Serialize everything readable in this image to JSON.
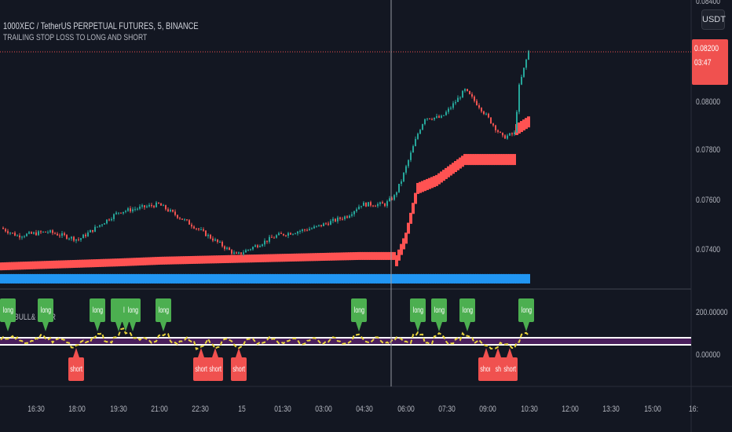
{
  "header": {
    "symbol_line": "1000XEC / TetherUS PERPETUAL FUTURES, 5, BINANCE",
    "indicator_name": "TRAILING STOP LOSS TO LONG AND SHORT",
    "oscillator_name": "BULL& BEAR"
  },
  "price_axis": {
    "currency": "USDT",
    "top_partial": "0.08400",
    "ticks": [
      "0.08000",
      "0.07800",
      "0.07600",
      "0.07400"
    ],
    "current_price": "0.08200",
    "countdown": "03:47"
  },
  "oscillator_axis": {
    "ticks": [
      "200.00000",
      "0.00000"
    ]
  },
  "time_axis": {
    "ticks": [
      "16:30",
      "18:00",
      "19:30",
      "21:00",
      "22:30",
      "15",
      "01:30",
      "03:00",
      "04:30",
      "06:00",
      "07:30",
      "09:00",
      "10:30",
      "12:00",
      "13:30",
      "15:00",
      "16:"
    ]
  },
  "colors": {
    "bg": "#131722",
    "up": "#26a69a",
    "down": "#ef5350",
    "stop_long": "#ff5252",
    "stop_short": "#2196f3",
    "long_label": "#4caf50",
    "short_label": "#f0514f"
  },
  "chart_data": {
    "type": "candlestick",
    "title": "1000XEC / TetherUS PERPETUAL FUTURES, 5, BINANCE",
    "ylim": [
      0.0727,
      0.0843
    ],
    "close_keypoints": [
      [
        0,
        0.07492
      ],
      [
        7,
        0.0746
      ],
      [
        20,
        0.07476
      ],
      [
        33,
        0.07444
      ],
      [
        50,
        0.07556
      ],
      [
        67,
        0.07587
      ],
      [
        83,
        0.07492
      ],
      [
        100,
        0.07381
      ],
      [
        117,
        0.0746
      ],
      [
        133,
        0.07492
      ],
      [
        147,
        0.0754
      ],
      [
        153,
        0.07587
      ],
      [
        163,
        0.07587
      ],
      [
        167,
        0.07619
      ],
      [
        170,
        0.07683
      ],
      [
        177,
        0.07873
      ],
      [
        180,
        0.07937
      ],
      [
        187,
        0.07937
      ],
      [
        190,
        0.07968
      ],
      [
        197,
        0.08048
      ],
      [
        203,
        0.07984
      ],
      [
        213,
        0.07857
      ],
      [
        218,
        0.07873
      ],
      [
        220,
        0.08063
      ],
      [
        224,
        0.08206
      ]
    ],
    "trailing_stop_long": [
      [
        0,
        0.07317
      ],
      [
        50,
        0.07333
      ],
      [
        68,
        0.0734
      ],
      [
        152,
        0.07359
      ],
      [
        168,
        0.07359
      ],
      [
        172,
        0.0745
      ],
      [
        177,
        0.07651
      ],
      [
        185,
        0.07683
      ],
      [
        197,
        0.07768
      ],
      [
        218,
        0.07768
      ],
      [
        219,
        0.07889
      ],
      [
        224,
        0.0792
      ]
    ],
    "trailing_stop_short": [
      [
        0,
        0.07286
      ],
      [
        224,
        0.07286
      ]
    ],
    "signals": [
      {
        "bar": 3,
        "type": "long",
        "text": "long"
      },
      {
        "bar": 19,
        "type": "long",
        "text": "long"
      },
      {
        "bar": 32,
        "type": "short",
        "text": "short"
      },
      {
        "bar": 41,
        "type": "long",
        "text": "long"
      },
      {
        "bar": 50,
        "type": "long",
        "text": "l"
      },
      {
        "bar": 53,
        "type": "long",
        "text": "lo"
      },
      {
        "bar": 56,
        "type": "long",
        "text": "long"
      },
      {
        "bar": 69,
        "type": "long",
        "text": "long"
      },
      {
        "bar": 85,
        "type": "short",
        "text": "short"
      },
      {
        "bar": 91,
        "type": "short",
        "text": "short"
      },
      {
        "bar": 101,
        "type": "short",
        "text": "short"
      },
      {
        "bar": 152,
        "type": "long",
        "text": "long"
      },
      {
        "bar": 177,
        "type": "long",
        "text": "long"
      },
      {
        "bar": 186,
        "type": "long",
        "text": "long"
      },
      {
        "bar": 198,
        "type": "long",
        "text": "long"
      },
      {
        "bar": 206,
        "type": "short",
        "text": "short"
      },
      {
        "bar": 211,
        "type": "short",
        "text": "sh"
      },
      {
        "bar": 216,
        "type": "short",
        "text": "short"
      },
      {
        "bar": 223,
        "type": "long",
        "text": "long"
      }
    ]
  }
}
